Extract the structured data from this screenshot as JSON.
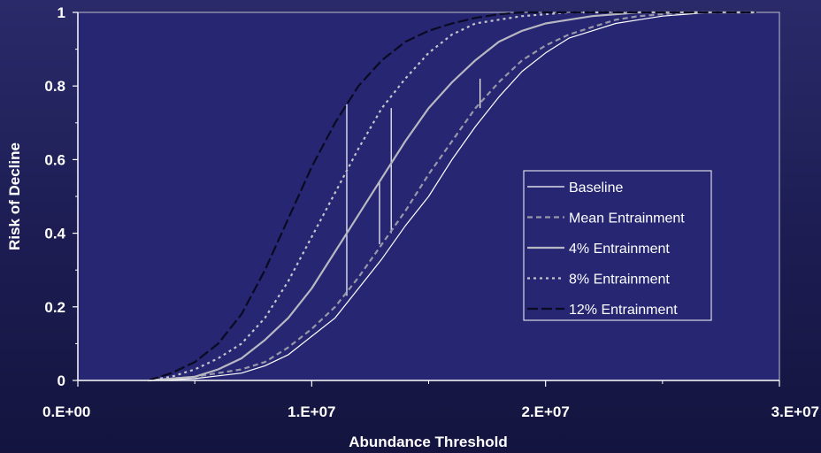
{
  "chart_data": {
    "type": "line",
    "title": "",
    "xlabel": "Abundance Threshold",
    "ylabel": "Risk of Decline",
    "xlim": [
      0,
      30000000
    ],
    "ylim": [
      0,
      1
    ],
    "x_ticks": [
      {
        "value": 0,
        "label": "0.E+00"
      },
      {
        "value": 10000000,
        "label": "1.E+07"
      },
      {
        "value": 20000000,
        "label": "2.E+07"
      },
      {
        "value": 30000000,
        "label": "3.E+07"
      }
    ],
    "y_ticks": [
      {
        "value": 0,
        "label": "0"
      },
      {
        "value": 0.2,
        "label": "0.2"
      },
      {
        "value": 0.4,
        "label": "0.4"
      },
      {
        "value": 0.6,
        "label": "0.6"
      },
      {
        "value": 0.8,
        "label": "0.8"
      },
      {
        "value": 1,
        "label": "1"
      }
    ],
    "grid": false,
    "legend_position": "right",
    "plot_background": "#262673",
    "series": [
      {
        "name": "Baseline",
        "color": "#ffffff",
        "width": 1.2,
        "dash": "",
        "x": [
          3000000,
          5000000,
          7000000,
          8000000,
          9000000,
          10000000,
          11000000,
          12000000,
          13000000,
          14000000,
          15000000,
          16000000,
          17000000,
          18000000,
          19000000,
          20000000,
          21000000,
          22000000,
          23000000,
          24000000,
          25000000,
          26000000,
          27000000,
          29000000
        ],
        "y": [
          0,
          0.005,
          0.02,
          0.04,
          0.07,
          0.12,
          0.17,
          0.25,
          0.33,
          0.42,
          0.5,
          0.6,
          0.69,
          0.77,
          0.84,
          0.89,
          0.93,
          0.95,
          0.97,
          0.98,
          0.99,
          0.995,
          1,
          1
        ]
      },
      {
        "name": "Mean Entrainment",
        "color": "#9898a8",
        "width": 2.2,
        "dash": "6,4",
        "x": [
          3000000,
          5000000,
          7000000,
          8000000,
          9000000,
          10000000,
          11000000,
          12000000,
          13000000,
          14000000,
          15000000,
          16000000,
          17000000,
          18000000,
          19000000,
          20000000,
          21000000,
          22000000,
          23000000,
          24000000,
          26000000,
          29000000
        ],
        "y": [
          0,
          0.01,
          0.03,
          0.05,
          0.09,
          0.14,
          0.2,
          0.28,
          0.37,
          0.46,
          0.56,
          0.65,
          0.74,
          0.81,
          0.87,
          0.91,
          0.94,
          0.96,
          0.98,
          0.99,
          1,
          1
        ]
      },
      {
        "name": "4% Entrainment",
        "color": "#b8b8c2",
        "width": 2.2,
        "dash": "",
        "x": [
          3000000,
          5000000,
          6000000,
          7000000,
          8000000,
          9000000,
          10000000,
          11000000,
          12000000,
          13000000,
          14000000,
          15000000,
          16000000,
          17000000,
          18000000,
          19000000,
          20000000,
          21000000,
          22000000,
          24000000,
          29000000
        ],
        "y": [
          0,
          0.01,
          0.03,
          0.06,
          0.11,
          0.17,
          0.25,
          0.35,
          0.45,
          0.55,
          0.65,
          0.74,
          0.81,
          0.87,
          0.92,
          0.95,
          0.97,
          0.98,
          0.99,
          1,
          1
        ]
      },
      {
        "name": "8% Entrainment",
        "color": "#c4c4cc",
        "width": 2.2,
        "dash": "3,4",
        "x": [
          3000000,
          4000000,
          5000000,
          6000000,
          7000000,
          8000000,
          9000000,
          10000000,
          11000000,
          12000000,
          13000000,
          14000000,
          15000000,
          16000000,
          17000000,
          18000000,
          19000000,
          20000000,
          21000000,
          23000000,
          29000000
        ],
        "y": [
          0,
          0.01,
          0.03,
          0.06,
          0.1,
          0.17,
          0.27,
          0.39,
          0.51,
          0.63,
          0.74,
          0.82,
          0.89,
          0.94,
          0.97,
          0.98,
          0.99,
          0.995,
          1,
          1,
          1
        ]
      },
      {
        "name": "12% Entrainment",
        "color": "#0a0a22",
        "width": 2.2,
        "dash": "12,4",
        "x": [
          3000000,
          4000000,
          5000000,
          6000000,
          7000000,
          8000000,
          9000000,
          10000000,
          11000000,
          12000000,
          13000000,
          14000000,
          15000000,
          16000000,
          17000000,
          18000000,
          19000000,
          20000000,
          22000000,
          29000000
        ],
        "y": [
          0,
          0.02,
          0.05,
          0.1,
          0.18,
          0.3,
          0.44,
          0.58,
          0.7,
          0.8,
          0.87,
          0.92,
          0.95,
          0.97,
          0.985,
          0.995,
          1,
          1,
          1,
          1
        ]
      }
    ],
    "annotations": [
      {
        "type": "vertical-line",
        "color": "#ffffff",
        "x": 11500000,
        "y_from": 0.23,
        "y_to": 0.75
      },
      {
        "type": "vertical-line",
        "color": "#ffffff",
        "x": 13400000,
        "y_from": 0.4,
        "y_to": 0.74
      },
      {
        "type": "vertical-line",
        "color": "#ffffff",
        "x": 12900000,
        "y_from": 0.37,
        "y_to": 0.54
      },
      {
        "type": "vertical-line",
        "color": "#ffffff",
        "x": 17200000,
        "y_from": 0.74,
        "y_to": 0.82
      }
    ]
  }
}
